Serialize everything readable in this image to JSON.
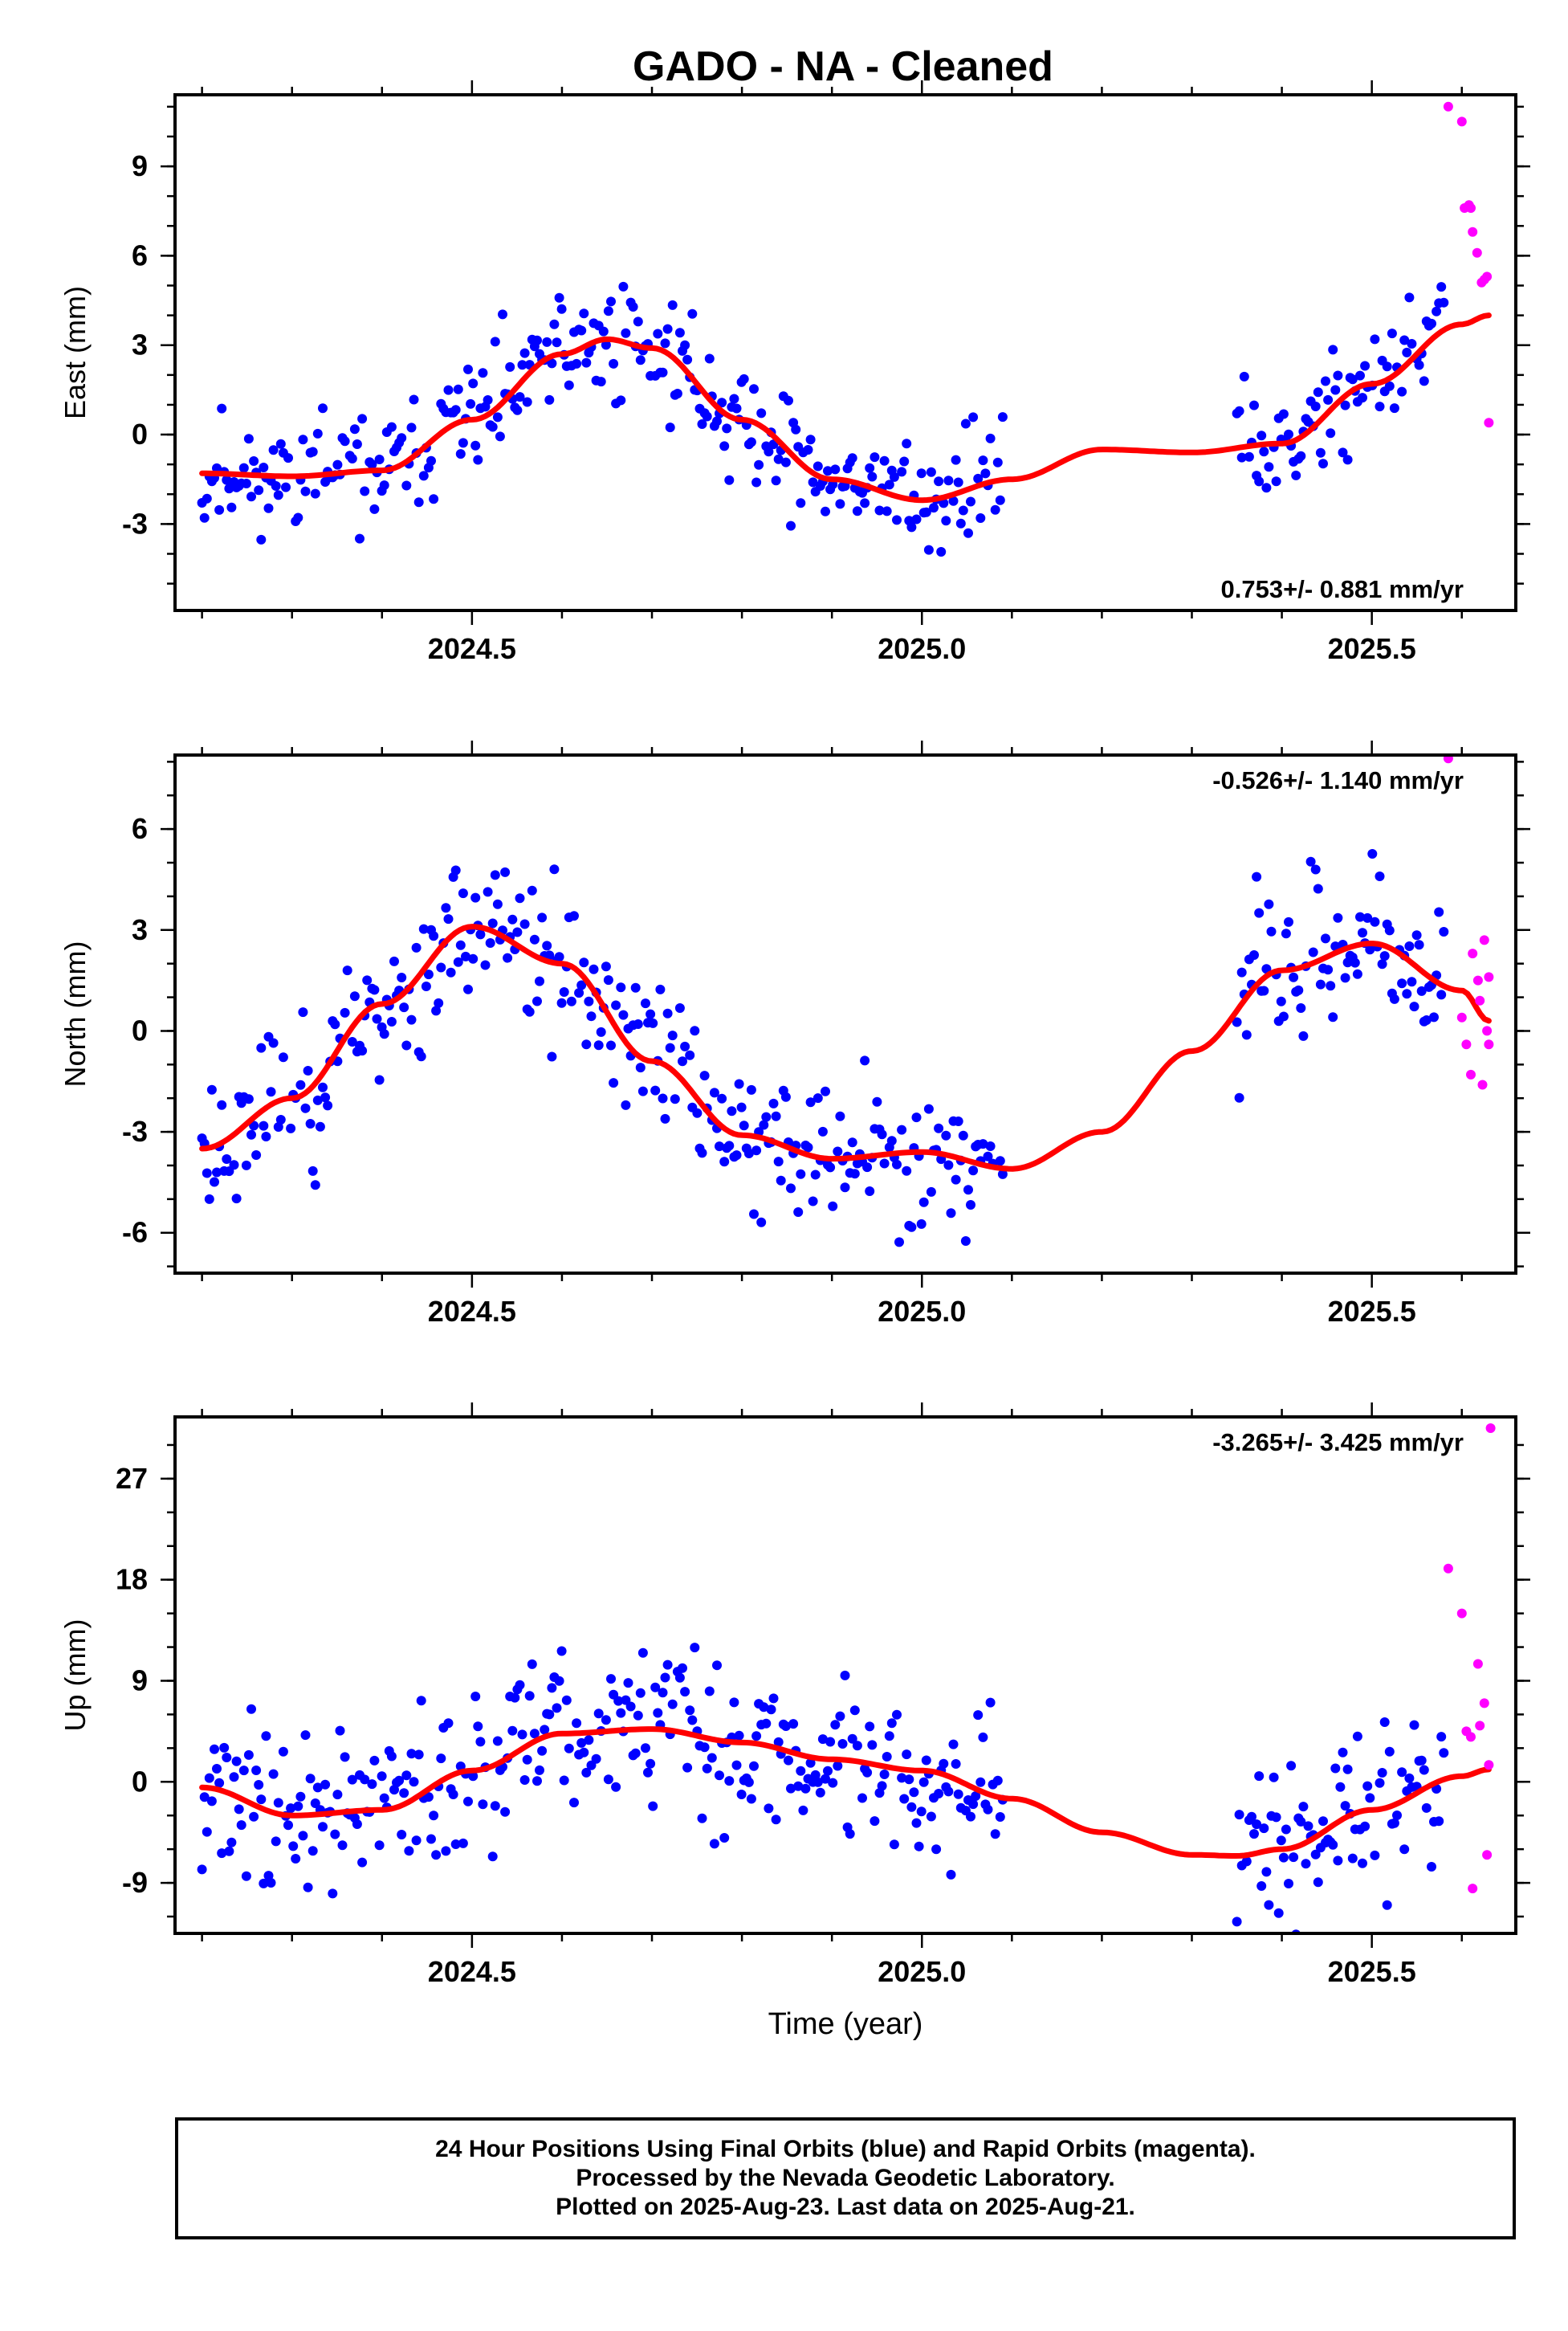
{
  "chart_data": [
    {
      "type": "scatter",
      "title": "GADO  - NA - Cleaned",
      "ylabel": "East (mm)",
      "xlabel": "",
      "xlim": [
        2024.17,
        2025.66
      ],
      "ylim": [
        -5.9,
        11.4
      ],
      "xticks": [
        2024.5,
        2025.0,
        2025.5
      ],
      "xtick_labels": [
        "2024.5",
        "2025.0",
        "2025.5"
      ],
      "yticks": [
        -3,
        0,
        3,
        6,
        9
      ],
      "ytick_labels": [
        "-3",
        "0",
        "3",
        "6",
        "9"
      ],
      "rate_text": "0.753+/- 0.881 mm/yr",
      "rate_position": "bottom-right",
      "final_color": "#0000ff",
      "rapid_color": "#ff00ff",
      "fit_color": "#ff0000",
      "fit": {
        "x": [
          2024.2,
          2024.3,
          2024.4,
          2024.5,
          2024.6,
          2024.65,
          2024.7,
          2024.8,
          2024.9,
          2025.0,
          2025.1,
          2025.2,
          2025.3,
          2025.4,
          2025.5,
          2025.6,
          2025.63
        ],
        "y": [
          -1.3,
          -1.4,
          -1.2,
          0.5,
          2.7,
          3.2,
          2.9,
          0.5,
          -1.5,
          -2.2,
          -1.5,
          -0.5,
          -0.6,
          -0.3,
          1.7,
          3.7,
          4.0
        ]
      },
      "series": [
        {
          "name": "Final Orbits",
          "seed": 11,
          "segments": [
            [
              2024.2,
              2025.09
            ],
            [
              2025.35,
              2025.58
            ]
          ],
          "amp": 1.0
        },
        {
          "name": "Rapid Orbits",
          "x": [
            2025.585,
            2025.6,
            2025.603,
            2025.608,
            2025.612,
            2025.61,
            2025.617,
            2025.622,
            2025.625,
            2025.628,
            2025.63
          ],
          "y": [
            11.0,
            10.5,
            7.6,
            7.7,
            6.8,
            7.6,
            6.1,
            5.1,
            5.2,
            5.3,
            0.4
          ]
        }
      ]
    },
    {
      "type": "scatter",
      "ylabel": "North (mm)",
      "xlabel": "",
      "xlim": [
        2024.17,
        2025.66
      ],
      "ylim": [
        -7.2,
        8.2
      ],
      "xticks": [
        2024.5,
        2025.0,
        2025.5
      ],
      "xtick_labels": [
        "2024.5",
        "2025.0",
        "2025.5"
      ],
      "yticks": [
        -6,
        -3,
        0,
        3,
        6
      ],
      "ytick_labels": [
        "-6",
        "-3",
        "0",
        "3",
        "6"
      ],
      "rate_text": "-0.526+/- 1.140 mm/yr",
      "rate_position": "top-right",
      "final_color": "#0000ff",
      "rapid_color": "#ff00ff",
      "fit_color": "#ff0000",
      "fit": {
        "x": [
          2024.2,
          2024.3,
          2024.4,
          2024.5,
          2024.6,
          2024.7,
          2024.8,
          2024.9,
          2025.0,
          2025.1,
          2025.2,
          2025.3,
          2025.4,
          2025.5,
          2025.6,
          2025.63
        ],
        "y": [
          -3.5,
          -2.0,
          0.8,
          3.1,
          2.0,
          -0.9,
          -3.1,
          -3.8,
          -3.6,
          -4.1,
          -3.0,
          -0.6,
          1.8,
          2.6,
          1.2,
          0.3
        ]
      },
      "series": [
        {
          "name": "Final Orbits",
          "seed": 23,
          "segments": [
            [
              2024.2,
              2025.09
            ],
            [
              2025.35,
              2025.58
            ]
          ],
          "amp": 1.1
        },
        {
          "name": "Rapid Orbits",
          "x": [
            2025.585,
            2025.6,
            2025.605,
            2025.61,
            2025.612,
            2025.618,
            2025.62,
            2025.623,
            2025.625,
            2025.63,
            2025.63,
            2025.628
          ],
          "y": [
            8.1,
            0.4,
            -0.4,
            -1.3,
            2.3,
            1.5,
            0.9,
            -1.6,
            2.7,
            1.6,
            -0.4,
            0.0
          ]
        }
      ]
    },
    {
      "type": "scatter",
      "ylabel": "Up (mm)",
      "xlabel": "Time (year)",
      "xlim": [
        2024.17,
        2025.66
      ],
      "ylim": [
        -13.5,
        32.5
      ],
      "xticks": [
        2024.5,
        2025.0,
        2025.5
      ],
      "xtick_labels": [
        "2024.5",
        "2025.0",
        "2025.5"
      ],
      "yticks": [
        -9,
        0,
        9,
        18,
        27
      ],
      "ytick_labels": [
        "-9",
        "0",
        "9",
        "18",
        "27"
      ],
      "rate_text": "-3.265+/- 3.425 mm/yr",
      "rate_position": "top-right",
      "final_color": "#0000ff",
      "rapid_color": "#ff00ff",
      "fit_color": "#ff0000",
      "fit": {
        "x": [
          2024.2,
          2024.3,
          2024.4,
          2024.5,
          2024.6,
          2024.7,
          2024.8,
          2024.9,
          2025.0,
          2025.1,
          2025.2,
          2025.3,
          2025.35,
          2025.4,
          2025.5,
          2025.6,
          2025.63
        ],
        "y": [
          -0.5,
          -3.0,
          -2.5,
          1.0,
          4.3,
          4.7,
          3.5,
          2.0,
          1.0,
          -1.5,
          -4.5,
          -6.5,
          -6.6,
          -6.0,
          -2.5,
          0.5,
          1.1
        ]
      },
      "series": [
        {
          "name": "Final Orbits",
          "seed": 37,
          "segments": [
            [
              2024.2,
              2025.09
            ],
            [
              2025.35,
              2025.58
            ]
          ],
          "amp": 3.8
        },
        {
          "name": "Rapid Orbits",
          "x": [
            2025.585,
            2025.6,
            2025.605,
            2025.61,
            2025.612,
            2025.618,
            2025.62,
            2025.625,
            2025.628,
            2025.63,
            2025.632
          ],
          "y": [
            19.0,
            15.0,
            4.5,
            4.0,
            -9.5,
            10.5,
            5.0,
            7.0,
            -6.5,
            1.5,
            31.5
          ]
        }
      ]
    }
  ],
  "footer": {
    "line1": "24 Hour Positions Using Final Orbits (blue) and Rapid Orbits (magenta).",
    "line2": "Processed by the Nevada Geodetic Laboratory.",
    "line3": "Plotted on 2025-Aug-23. Last data on 2025-Aug-21."
  }
}
